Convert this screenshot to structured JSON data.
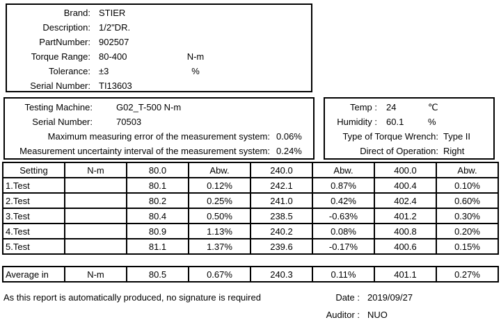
{
  "device_info": {
    "rows": [
      {
        "label": "Brand:",
        "value": "STIER",
        "unit": ""
      },
      {
        "label": "Description:",
        "value": "1/2\"DR.",
        "unit": ""
      },
      {
        "label": "PartNumber:",
        "value": "902507",
        "unit": ""
      },
      {
        "label": "Torque Range:",
        "value": "80-400",
        "unit": "N-m"
      },
      {
        "label": "Tolerance:",
        "value": "±3",
        "unit": "%"
      },
      {
        "label": "Serial Number:",
        "value": "TI13603",
        "unit": ""
      }
    ]
  },
  "machine_info": {
    "rows_short": [
      {
        "label": "Testing Machine:",
        "value": "G02_T-500 N-m"
      },
      {
        "label": "Serial Number:",
        "value": "70503"
      }
    ],
    "rows_long": [
      {
        "label": "Maximum measuring error of the measurement system:",
        "value": "0.06%"
      },
      {
        "label": "Measurement uncertainty interval of the measurement system:",
        "value": "0.24%"
      }
    ]
  },
  "environment_info": {
    "rows_unit": [
      {
        "label": "Temp :",
        "value": "24",
        "unit": "℃"
      },
      {
        "label": "Humidity :",
        "value": "60.1",
        "unit": "%"
      }
    ],
    "rows_plain": [
      {
        "label": "Type of Torque Wrench:",
        "value": "Type II"
      },
      {
        "label": "Direct of Operation:",
        "value": "Right"
      }
    ]
  },
  "results_table": {
    "headers": [
      "Setting",
      "N-m",
      "80.0",
      "Abw.",
      "240.0",
      "Abw.",
      "400.0",
      "Abw."
    ],
    "rows": [
      [
        "1.Test",
        "",
        "80.1",
        "0.12%",
        "242.1",
        "0.87%",
        "400.4",
        "0.10%"
      ],
      [
        "2.Test",
        "",
        "80.2",
        "0.25%",
        "241.0",
        "0.42%",
        "402.4",
        "0.60%"
      ],
      [
        "3.Test",
        "",
        "80.4",
        "0.50%",
        "238.5",
        "-0.63%",
        "401.2",
        "0.30%"
      ],
      [
        "4.Test",
        "",
        "80.9",
        "1.13%",
        "240.2",
        "0.08%",
        "400.8",
        "0.20%"
      ],
      [
        "5.Test",
        "",
        "81.1",
        "1.37%",
        "239.6",
        "-0.17%",
        "400.6",
        "0.15%"
      ]
    ],
    "average_row": [
      "Average in",
      "N-m",
      "80.5",
      "0.67%",
      "240.3",
      "0.11%",
      "401.1",
      "0.27%"
    ]
  },
  "footer": {
    "note": "As this report is automatically produced, no signature is required",
    "date_label": "Date :",
    "date_value": "2019/09/27",
    "auditor_label": "Auditor :",
    "auditor_value": "NUO"
  }
}
